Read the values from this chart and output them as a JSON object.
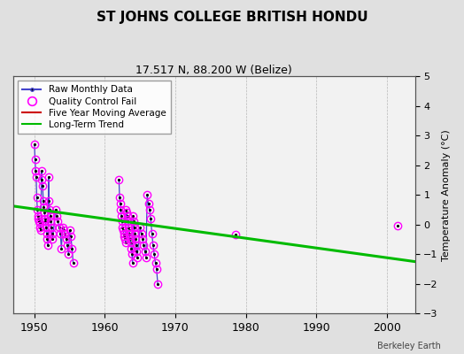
{
  "title": "ST JOHNS COLLEGE BRITISH HONDU",
  "subtitle": "17.517 N, 88.200 W (Belize)",
  "ylabel_right": "Temperature Anomaly (°C)",
  "credit": "Berkeley Earth",
  "xlim": [
    1947,
    2004
  ],
  "ylim": [
    -3,
    5
  ],
  "yticks": [
    -3,
    -2,
    -1,
    0,
    1,
    2,
    3,
    4,
    5
  ],
  "xticks": [
    1950,
    1960,
    1970,
    1980,
    1990,
    2000
  ],
  "bg_color": "#e0e0e0",
  "plot_bg_color": "#f2f2f2",
  "segments": [
    {
      "x": [
        1950.0,
        1950.08,
        1950.17,
        1950.25,
        1950.33,
        1950.42,
        1950.5,
        1950.58,
        1950.67,
        1950.75,
        1950.83,
        1950.92,
        1951.0,
        1951.08,
        1951.17,
        1951.25,
        1951.33,
        1951.42,
        1951.5,
        1951.58,
        1951.67,
        1951.75,
        1951.83,
        1951.92,
        1952.0,
        1952.08,
        1952.17,
        1952.25,
        1952.33,
        1952.42,
        1952.5,
        1952.58,
        1953.0,
        1953.17,
        1953.33,
        1953.5,
        1953.67,
        1953.83,
        1954.0,
        1954.17,
        1954.33,
        1954.5,
        1954.67,
        1954.83,
        1955.0,
        1955.17,
        1955.33,
        1955.5
      ],
      "y": [
        2.7,
        2.2,
        1.8,
        1.6,
        0.9,
        0.5,
        0.3,
        0.2,
        0.1,
        0.05,
        -0.1,
        -0.2,
        1.8,
        1.5,
        1.3,
        0.8,
        0.6,
        0.4,
        0.2,
        0.1,
        -0.1,
        -0.3,
        -0.5,
        -0.7,
        1.6,
        0.8,
        0.5,
        0.3,
        0.1,
        -0.1,
        -0.3,
        -0.5,
        0.5,
        0.3,
        0.1,
        -0.1,
        -0.3,
        -0.8,
        -0.1,
        -0.2,
        -0.3,
        -0.5,
        -0.7,
        -1.0,
        -0.2,
        -0.4,
        -0.8,
        -1.3
      ]
    },
    {
      "x": [
        1962.0,
        1962.08,
        1962.17,
        1962.25,
        1962.33,
        1962.42,
        1962.5,
        1962.58,
        1962.67,
        1962.75,
        1962.83,
        1962.92,
        1963.0,
        1963.08,
        1963.17,
        1963.25,
        1963.33,
        1963.42,
        1963.5,
        1963.58,
        1963.67,
        1963.75,
        1963.83,
        1963.92,
        1964.0,
        1964.08,
        1964.17,
        1964.25,
        1964.33,
        1964.42,
        1964.5,
        1964.58,
        1965.0,
        1965.17,
        1965.33,
        1965.5,
        1965.67,
        1965.83,
        1966.0,
        1966.17,
        1966.33,
        1966.5,
        1966.67,
        1966.83,
        1967.0,
        1967.17,
        1967.33,
        1967.5
      ],
      "y": [
        1.5,
        0.9,
        0.7,
        0.5,
        0.3,
        0.1,
        -0.1,
        -0.2,
        -0.3,
        -0.4,
        -0.5,
        -0.6,
        0.5,
        0.4,
        0.3,
        0.1,
        -0.1,
        -0.2,
        -0.3,
        -0.5,
        -0.6,
        -0.8,
        -1.0,
        -1.3,
        0.3,
        0.1,
        -0.1,
        -0.3,
        -0.5,
        -0.7,
        -0.9,
        -1.1,
        -0.1,
        -0.3,
        -0.5,
        -0.7,
        -0.9,
        -1.1,
        1.0,
        0.7,
        0.5,
        0.2,
        -0.3,
        -0.7,
        -1.0,
        -1.3,
        -1.5,
        -2.0
      ]
    }
  ],
  "isolated_points": {
    "x": [
      1978.5,
      2001.5
    ],
    "y": [
      -0.35,
      -0.05
    ]
  },
  "qc_fail_x": [
    1950.0,
    1950.08,
    1950.17,
    1950.25,
    1950.33,
    1950.42,
    1950.5,
    1950.58,
    1950.67,
    1950.75,
    1950.83,
    1950.92,
    1951.0,
    1951.08,
    1951.17,
    1951.25,
    1951.33,
    1951.42,
    1951.5,
    1951.58,
    1951.67,
    1951.75,
    1951.83,
    1951.92,
    1952.0,
    1952.08,
    1952.17,
    1952.25,
    1952.33,
    1952.42,
    1952.5,
    1952.58,
    1953.0,
    1953.17,
    1953.33,
    1953.5,
    1953.67,
    1953.83,
    1954.0,
    1954.17,
    1954.33,
    1954.5,
    1954.67,
    1954.83,
    1955.0,
    1955.17,
    1955.33,
    1955.5,
    1962.0,
    1962.08,
    1962.17,
    1962.25,
    1962.33,
    1962.42,
    1962.5,
    1962.58,
    1962.67,
    1962.75,
    1962.83,
    1962.92,
    1963.0,
    1963.08,
    1963.17,
    1963.25,
    1963.33,
    1963.42,
    1963.5,
    1963.58,
    1963.67,
    1963.75,
    1963.83,
    1963.92,
    1964.0,
    1964.08,
    1964.17,
    1964.25,
    1964.33,
    1964.42,
    1964.5,
    1964.58,
    1965.0,
    1965.17,
    1965.33,
    1965.5,
    1965.67,
    1965.83,
    1966.0,
    1966.17,
    1966.33,
    1966.5,
    1966.67,
    1966.83,
    1967.0,
    1967.17,
    1967.33,
    1967.5
  ],
  "qc_fail_y": [
    2.7,
    2.2,
    1.8,
    1.6,
    0.9,
    0.5,
    0.3,
    0.2,
    0.1,
    0.05,
    -0.1,
    -0.2,
    1.8,
    1.5,
    1.3,
    0.8,
    0.6,
    0.4,
    0.2,
    0.1,
    -0.1,
    -0.3,
    -0.5,
    -0.7,
    1.6,
    0.8,
    0.5,
    0.3,
    0.1,
    -0.1,
    -0.3,
    -0.5,
    0.5,
    0.3,
    0.1,
    -0.1,
    -0.3,
    -0.8,
    -0.1,
    -0.2,
    -0.3,
    -0.5,
    -0.7,
    -1.0,
    -0.2,
    -0.4,
    -0.8,
    -1.3,
    1.5,
    0.9,
    0.7,
    0.5,
    0.3,
    0.1,
    -0.1,
    -0.2,
    -0.3,
    -0.4,
    -0.5,
    -0.6,
    0.5,
    0.4,
    0.3,
    0.1,
    -0.1,
    -0.2,
    -0.3,
    -0.5,
    -0.6,
    -0.8,
    -1.0,
    -1.3,
    0.3,
    0.1,
    -0.1,
    -0.3,
    -0.5,
    -0.7,
    -0.9,
    -1.1,
    -0.1,
    -0.3,
    -0.5,
    -0.7,
    -0.9,
    -1.1,
    1.0,
    0.7,
    0.5,
    0.2,
    -0.3,
    -0.7,
    -1.0,
    -1.3,
    -1.5,
    -2.0
  ],
  "trend_x": [
    1947,
    2004
  ],
  "trend_y": [
    0.62,
    -1.25
  ],
  "legend_labels": [
    "Raw Monthly Data",
    "Quality Control Fail",
    "Five Year Moving Average",
    "Long-Term Trend"
  ]
}
